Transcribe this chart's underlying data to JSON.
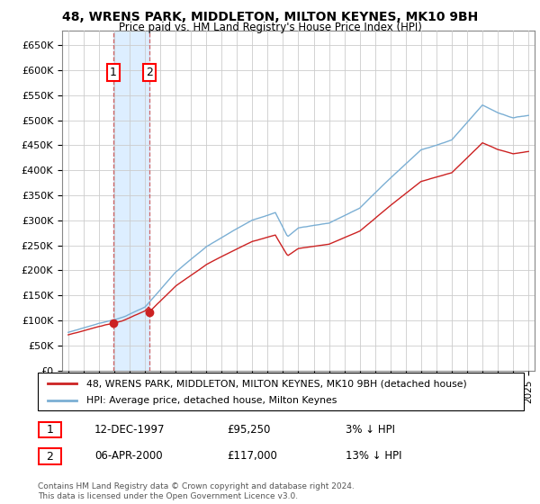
{
  "title": "48, WRENS PARK, MIDDLETON, MILTON KEYNES, MK10 9BH",
  "subtitle": "Price paid vs. HM Land Registry's House Price Index (HPI)",
  "ylim": [
    0,
    680000
  ],
  "yticks": [
    0,
    50000,
    100000,
    150000,
    200000,
    250000,
    300000,
    350000,
    400000,
    450000,
    500000,
    550000,
    600000,
    650000
  ],
  "ytick_labels": [
    "£0",
    "£50K",
    "£100K",
    "£150K",
    "£200K",
    "£250K",
    "£300K",
    "£350K",
    "£400K",
    "£450K",
    "£500K",
    "£550K",
    "£600K",
    "£650K"
  ],
  "hpi_color": "#7bafd4",
  "price_color": "#cc2222",
  "marker_color": "#cc2222",
  "dashed_color": "#cc4444",
  "fill_color": "#ddeeff",
  "transaction1_date": 1997.95,
  "transaction1_price": 95250,
  "transaction1_label": "1",
  "transaction2_date": 2000.27,
  "transaction2_price": 117000,
  "transaction2_label": "2",
  "legend_price_label": "48, WRENS PARK, MIDDLETON, MILTON KEYNES, MK10 9BH (detached house)",
  "legend_hpi_label": "HPI: Average price, detached house, Milton Keynes",
  "note1_label": "1",
  "note1_date": "12-DEC-1997",
  "note1_price": "£95,250",
  "note1_pct": "3% ↓ HPI",
  "note2_label": "2",
  "note2_date": "06-APR-2000",
  "note2_price": "£117,000",
  "note2_pct": "13% ↓ HPI",
  "footer": "Contains HM Land Registry data © Crown copyright and database right 2024.\nThis data is licensed under the Open Government Licence v3.0.",
  "background_color": "#ffffff",
  "grid_color": "#cccccc"
}
